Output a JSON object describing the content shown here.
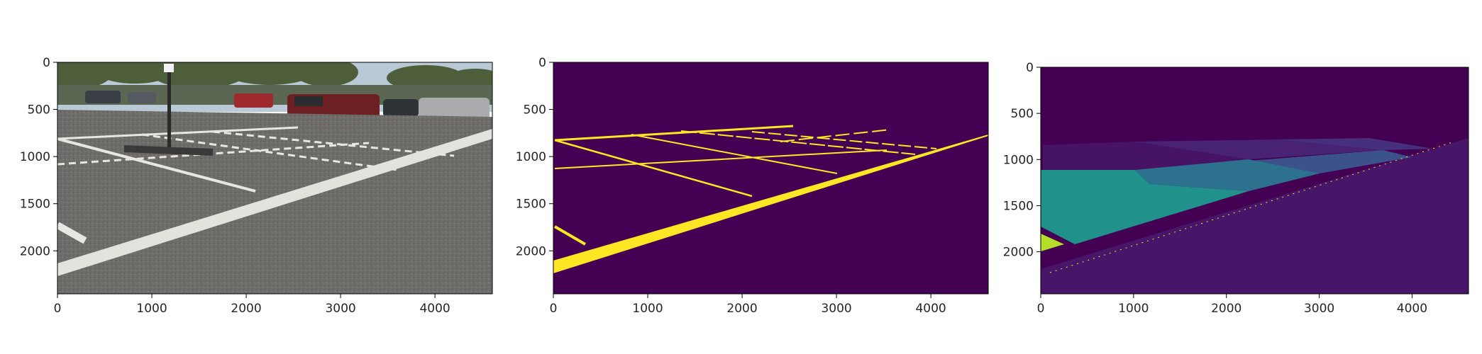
{
  "chart_data": [
    {
      "type": "image",
      "content": "photo-parking-lot",
      "x_ticks": [
        0,
        1000,
        2000,
        3000,
        4000
      ],
      "y_ticks": [
        0,
        500,
        1000,
        1500,
        2000
      ],
      "xlim": [
        0,
        4608
      ],
      "ylim": [
        2456,
        0
      ]
    },
    {
      "type": "heatmap",
      "content": "binary-line-mask",
      "colormap": "viridis",
      "x_ticks": [
        0,
        1000,
        2000,
        3000,
        4000
      ],
      "y_ticks": [
        0,
        500,
        1000,
        1500,
        2000
      ],
      "xlim": [
        0,
        4608
      ],
      "ylim": [
        2456,
        0
      ]
    },
    {
      "type": "heatmap",
      "content": "segment-labels",
      "colormap": "viridis",
      "x_ticks": [
        0,
        1000,
        2000,
        3000,
        4000
      ],
      "y_ticks": [
        0,
        500,
        1000,
        1500,
        2000
      ],
      "xlim": [
        0,
        4608
      ],
      "ylim": [
        2456,
        0
      ]
    }
  ],
  "colors": {
    "viridis_low": "#440154",
    "viridis_high": "#fde725",
    "segment_1": "#471365",
    "segment_2": "#3b528b",
    "segment_3": "#2c728e",
    "segment_4": "#21918c",
    "segment_5": "#b5de2b",
    "asphalt": "#6e6c69",
    "sky": "#b9c9d6",
    "trees": "#4f5e3a",
    "paint": "#e7e6e1"
  }
}
